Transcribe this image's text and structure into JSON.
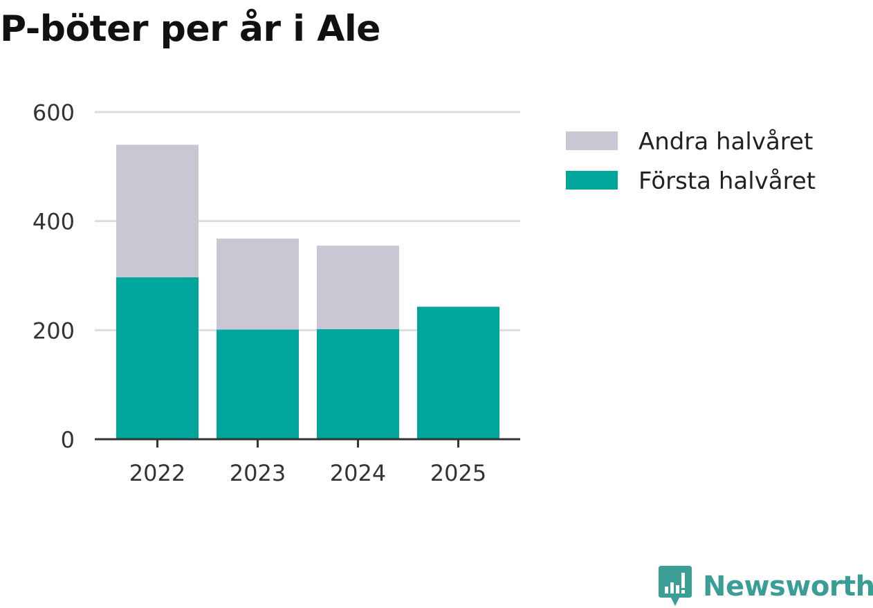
{
  "title": "P-böter per år i Ale",
  "brand": {
    "name": "Newsworthy",
    "icon": "newsworthy-logo-icon",
    "color": "#3a9e96"
  },
  "chart_data": {
    "type": "bar",
    "stacked": true,
    "title": "P-böter per år i Ale",
    "xlabel": "",
    "ylabel": "",
    "categories": [
      "2022",
      "2023",
      "2024",
      "2025"
    ],
    "series": [
      {
        "name": "Första halvåret",
        "color": "#00a59b",
        "values": [
          297,
          201,
          202,
          243
        ]
      },
      {
        "name": "Andra halvåret",
        "color": "#c8c7d3",
        "values": [
          243,
          167,
          153,
          0
        ]
      }
    ],
    "ylim": [
      0,
      600
    ],
    "yticks": [
      "0",
      "200",
      "400",
      "600"
    ],
    "grid": true,
    "legend": "right"
  }
}
